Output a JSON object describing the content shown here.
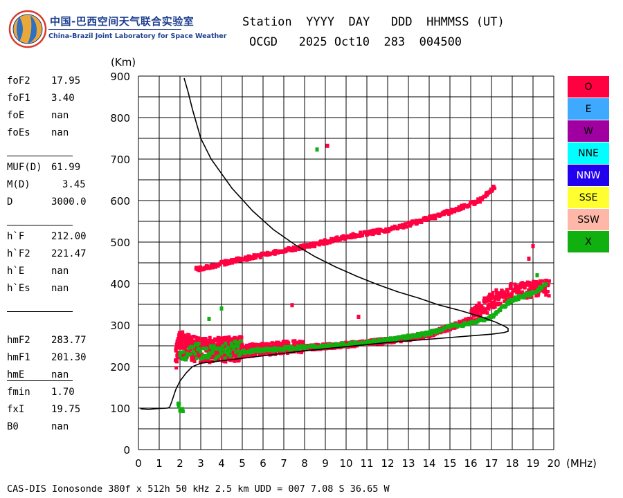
{
  "logo": {
    "cn": "中国-巴西空间天气联合实验室",
    "en": "China-Brazil Joint Laboratory for Space Weather"
  },
  "header": {
    "line1": "Station  YYYY  DAY   DDD  HHMMSS (UT)",
    "line2": "OCGD   2025 Oct10  283  004500"
  },
  "parameters": [
    {
      "name": "foF2",
      "value": "17.95"
    },
    {
      "name": "foF1",
      "value": "3.40"
    },
    {
      "name": "foE",
      "value": "nan"
    },
    {
      "name": "foEs",
      "value": "nan"
    },
    {
      "name": "MUF(D)",
      "value": "61.99"
    },
    {
      "name": "M(D)",
      "value": "3.45"
    },
    {
      "name": "D",
      "value": "3000.0"
    },
    {
      "name": "h`F",
      "value": "212.00"
    },
    {
      "name": "h`F2",
      "value": "221.47"
    },
    {
      "name": "h`E",
      "value": "nan"
    },
    {
      "name": "h`Es",
      "value": "nan"
    },
    {
      "name": "hmF2",
      "value": "283.77"
    },
    {
      "name": "hmF1",
      "value": "201.30"
    },
    {
      "name": "hmE",
      "value": "nan"
    },
    {
      "name": "fmin",
      "value": "1.70"
    },
    {
      "name": "fxI",
      "value": "19.75"
    },
    {
      "name": "B0",
      "value": "nan"
    }
  ],
  "legend": [
    {
      "label": "O",
      "color": "#ff0040"
    },
    {
      "label": "E",
      "color": "#3fa9ff"
    },
    {
      "label": "W",
      "color": "#a0009f"
    },
    {
      "label": "NNE",
      "color": "#00ffff"
    },
    {
      "label": "NNW",
      "color": "#2100f0"
    },
    {
      "label": "SSE",
      "color": "#ffff30"
    },
    {
      "label": "SSW",
      "color": "#ffb8a8"
    },
    {
      "label": "X",
      "color": "#10b010"
    }
  ],
  "footer": "CAS-DIS Ionosonde 380f x 512h 50 kHz 2.5 km UDD = 007 7.08 S 36.65 W",
  "chart_data": {
    "type": "scatter",
    "xlabel": "(MHz)",
    "ylabel": "(Km)",
    "xlim": [
      0,
      20
    ],
    "ylim": [
      0,
      900
    ],
    "x_ticks": [
      0,
      1,
      2,
      3,
      4,
      5,
      6,
      7,
      8,
      9,
      10,
      11,
      12,
      13,
      14,
      15,
      16,
      17,
      18,
      19,
      20
    ],
    "y_ticks": [
      0,
      100,
      200,
      300,
      400,
      500,
      600,
      700,
      800,
      900
    ],
    "grid": true,
    "traces": [
      {
        "name": "O",
        "color": "#ff0040",
        "points": [
          [
            1.8,
            215
          ],
          [
            2.0,
            245
          ],
          [
            2.5,
            232
          ],
          [
            3.0,
            228
          ],
          [
            4.0,
            228
          ],
          [
            5.0,
            232
          ],
          [
            6.0,
            236
          ],
          [
            7.0,
            240
          ],
          [
            8.0,
            243
          ],
          [
            9.0,
            246
          ],
          [
            10.0,
            250
          ],
          [
            11.0,
            255
          ],
          [
            12.0,
            260
          ],
          [
            13.0,
            266
          ],
          [
            14.0,
            275
          ],
          [
            15.0,
            292
          ],
          [
            16.0,
            310
          ],
          [
            16.5,
            330
          ],
          [
            17.0,
            350
          ],
          [
            17.5,
            365
          ],
          [
            18.0,
            372
          ],
          [
            19.0,
            378
          ],
          [
            19.8,
            382
          ]
        ]
      },
      {
        "name": "O-F2-multihop",
        "color": "#ff0040",
        "points": [
          [
            2.8,
            432
          ],
          [
            3.5,
            440
          ],
          [
            4.5,
            452
          ],
          [
            5.5,
            462
          ],
          [
            6.5,
            472
          ],
          [
            7.5,
            482
          ],
          [
            8.5,
            492
          ],
          [
            9.5,
            505
          ],
          [
            10.5,
            515
          ],
          [
            11.5,
            523
          ],
          [
            12.5,
            533
          ],
          [
            13.5,
            548
          ],
          [
            14.5,
            563
          ],
          [
            15.5,
            580
          ],
          [
            16.5,
            600
          ],
          [
            17.2,
            632
          ]
        ]
      },
      {
        "name": "X",
        "color": "#10b010",
        "points": [
          [
            2.0,
            224
          ],
          [
            3.0,
            229
          ],
          [
            4.0,
            231
          ],
          [
            5.0,
            234
          ],
          [
            6.0,
            238
          ],
          [
            7.0,
            242
          ],
          [
            8.0,
            245
          ],
          [
            9.0,
            248
          ],
          [
            10.0,
            252
          ],
          [
            11.0,
            257
          ],
          [
            12.0,
            263
          ],
          [
            13.0,
            270
          ],
          [
            14.0,
            279
          ],
          [
            15.0,
            295
          ],
          [
            16.0,
            303
          ],
          [
            17.0,
            318
          ],
          [
            18.0,
            360
          ],
          [
            19.0,
            375
          ],
          [
            19.7,
            400
          ]
        ]
      },
      {
        "name": "fmin-echo",
        "color": "#10b010",
        "points": [
          [
            1.9,
            110
          ],
          [
            2.0,
            95
          ],
          [
            2.2,
            88
          ]
        ]
      }
    ],
    "profile": [
      [
        0.1,
        98
      ],
      [
        0.5,
        97
      ],
      [
        1.0,
        99
      ],
      [
        1.4,
        100
      ],
      [
        1.5,
        102
      ],
      [
        1.6,
        115
      ],
      [
        1.7,
        130
      ],
      [
        1.8,
        145
      ],
      [
        2.0,
        165
      ],
      [
        2.3,
        185
      ],
      [
        2.6,
        200
      ],
      [
        3.0,
        208
      ],
      [
        4.0,
        214
      ],
      [
        5.0,
        220
      ],
      [
        6.0,
        226
      ],
      [
        7.0,
        232
      ],
      [
        8.0,
        238
      ],
      [
        9.0,
        243
      ],
      [
        10.0,
        248
      ],
      [
        11.0,
        253
      ],
      [
        12.0,
        258
      ],
      [
        13.0,
        262
      ],
      [
        14.0,
        266
      ],
      [
        15.0,
        270
      ],
      [
        16.0,
        274
      ],
      [
        17.0,
        278
      ],
      [
        17.6,
        282
      ],
      [
        17.8,
        285
      ],
      [
        17.8,
        292
      ],
      [
        17.6,
        298
      ],
      [
        17.2,
        307
      ],
      [
        16.5,
        320
      ],
      [
        15.5,
        335
      ],
      [
        14.5,
        348
      ],
      [
        13.5,
        365
      ],
      [
        12.5,
        380
      ],
      [
        11.5,
        398
      ],
      [
        10.5,
        418
      ],
      [
        9.5,
        440
      ],
      [
        8.5,
        465
      ],
      [
        7.5,
        495
      ],
      [
        6.5,
        530
      ],
      [
        5.5,
        575
      ],
      [
        4.5,
        630
      ],
      [
        3.5,
        700
      ],
      [
        3.0,
        750
      ],
      [
        2.6,
        820
      ],
      [
        2.4,
        860
      ],
      [
        2.2,
        895
      ]
    ]
  }
}
